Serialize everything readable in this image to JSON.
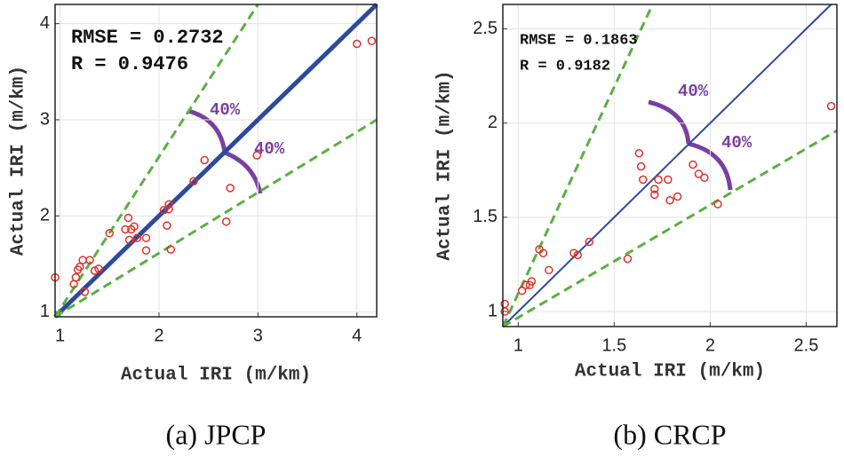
{
  "chart_data": [
    {
      "type": "scatter",
      "caption": "(a) JPCP",
      "xlabel": "Actual IRI (m/km)",
      "ylabel": "Actual IRI (m/km)",
      "annotations": [
        "RMSE = 0.2732",
        "R = 0.9476",
        "40%",
        "40%"
      ],
      "xlim": [
        0.95,
        4.2
      ],
      "ylim": [
        0.95,
        4.2
      ],
      "xticks": [
        1,
        2,
        3,
        4
      ],
      "yticks": [
        1,
        2,
        3,
        4
      ],
      "grid": true,
      "color": "#e0302a",
      "x": [
        0.95,
        1.14,
        1.16,
        1.18,
        1.2,
        1.23,
        1.25,
        1.3,
        1.35,
        1.39,
        1.5,
        1.66,
        1.69,
        1.72,
        1.7,
        1.75,
        1.78,
        1.87,
        1.87,
        2.05,
        2.08,
        2.1,
        2.1,
        2.12,
        2.35,
        2.46,
        2.68,
        2.72,
        2.99,
        4.0,
        4.15
      ],
      "y": [
        1.36,
        1.29,
        1.36,
        1.44,
        1.47,
        1.54,
        1.21,
        1.54,
        1.43,
        1.45,
        1.82,
        1.86,
        1.98,
        1.86,
        1.75,
        1.89,
        1.77,
        1.77,
        1.64,
        2.06,
        1.9,
        2.12,
        2.07,
        1.65,
        2.36,
        2.58,
        1.94,
        2.29,
        2.63,
        3.79,
        3.82
      ],
      "reference_lines": [
        {
          "x": [
            0.95,
            4.2
          ],
          "y": [
            0.95,
            4.2
          ],
          "color": "#2e4a9e",
          "style": "solid"
        },
        {
          "x": [
            0.95,
            3.0
          ],
          "y": [
            0.95,
            4.2
          ],
          "color": "#5ab040",
          "style": "dashed"
        },
        {
          "x": [
            0.95,
            4.2
          ],
          "y": [
            0.95,
            3.0
          ],
          "color": "#5ab040",
          "style": "dashed"
        }
      ]
    },
    {
      "type": "scatter",
      "caption": "(b) CRCP",
      "xlabel": "Actual IRI (m/km)",
      "ylabel": "Actual IRI (m/km)",
      "annotations": [
        "RMSE = 0.1863",
        "R = 0.9182",
        "40%",
        "40%"
      ],
      "xlim": [
        0.92,
        2.66
      ],
      "ylim": [
        0.92,
        2.63
      ],
      "xticks": [
        1,
        1.5,
        2,
        2.5
      ],
      "yticks": [
        1,
        1.5,
        2,
        2.5
      ],
      "grid": true,
      "color": "#e0302a",
      "x": [
        0.93,
        0.93,
        1.02,
        1.04,
        1.06,
        1.07,
        1.11,
        1.13,
        1.16,
        1.29,
        1.31,
        1.37,
        1.57,
        1.63,
        1.64,
        1.65,
        1.71,
        1.71,
        1.73,
        1.78,
        1.79,
        1.83,
        1.91,
        1.94,
        1.97,
        2.04,
        2.63
      ],
      "y": [
        1.04,
        1.0,
        1.11,
        1.14,
        1.14,
        1.16,
        1.33,
        1.31,
        1.22,
        1.31,
        1.3,
        1.37,
        1.28,
        1.84,
        1.77,
        1.7,
        1.65,
        1.62,
        1.7,
        1.7,
        1.59,
        1.61,
        1.78,
        1.73,
        1.71,
        1.57,
        2.09
      ],
      "reference_lines": [
        {
          "x": [
            0.92,
            2.63
          ],
          "y": [
            0.92,
            2.63
          ],
          "color": "#2e4a9e",
          "style": "solid"
        },
        {
          "x": [
            0.92,
            1.7
          ],
          "y": [
            0.92,
            2.63
          ],
          "color": "#5ab040",
          "style": "dashed"
        },
        {
          "x": [
            0.92,
            2.66
          ],
          "y": [
            0.92,
            1.96
          ],
          "color": "#5ab040",
          "style": "dashed"
        }
      ]
    }
  ]
}
